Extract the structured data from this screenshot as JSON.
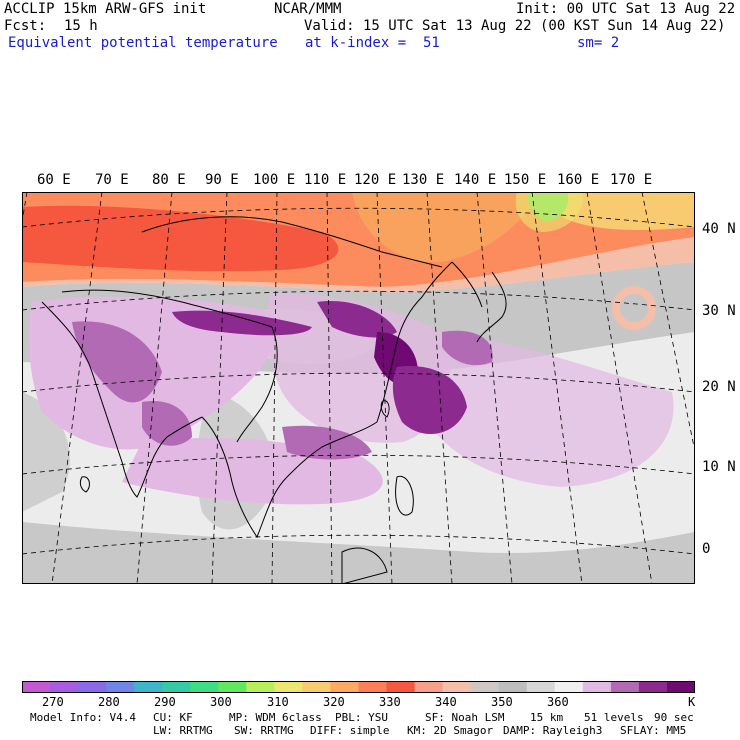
{
  "header": {
    "model": "ACCLIP 15km ARW-GFS init",
    "org": "NCAR/MMM",
    "init": "Init: 00 UTC Sat 13 Aug 22",
    "fcst_label": "Fcst:",
    "fcst_value": "15 h",
    "valid": "Valid: 15 UTC Sat 13 Aug 22 (00 KST Sun 14 Aug 22)",
    "field": "Equivalent potential temperature",
    "level": "at k-index =  51",
    "smooth": "sm= 2"
  },
  "map": {
    "lon_labels": [
      "60 E",
      "70 E",
      "80 E",
      "90 E",
      "100 E",
      "110 E",
      "120 E",
      "130 E",
      "140 E",
      "150 E",
      "160 E",
      "170 E"
    ],
    "lat_labels": [
      "40 N",
      "30 N",
      "20 N",
      "10 N",
      "0"
    ]
  },
  "colorbar": {
    "colors": [
      "#c45ad1",
      "#a85ce0",
      "#8a6ae6",
      "#6f86e8",
      "#3fb6c8",
      "#35c9a6",
      "#3fdc86",
      "#62e85e",
      "#b8ee5a",
      "#ede670",
      "#f8cb70",
      "#fca962",
      "#fc7f58",
      "#f5573f",
      "#f6a08a",
      "#f4bea8",
      "#cfc8c2",
      "#bdbdbd",
      "#d6d6d6",
      "#f0f0f0",
      "#e2b9e2",
      "#b26ab5",
      "#8c2a8f",
      "#6e0a72"
    ],
    "ticks": [
      "270",
      "280",
      "290",
      "300",
      "310",
      "320",
      "330",
      "340",
      "350",
      "360"
    ],
    "unit": "K"
  },
  "footer": {
    "model_info": "Model Info: V4.4",
    "cu": "CU: KF",
    "mp": "MP: WDM 6class",
    "pbl": "PBL: YSU",
    "sf": "SF: Noah LSM",
    "res": "15 km",
    "levels": "51 levels",
    "dt": "90 sec",
    "lw": "LW: RRTMG",
    "sw": "SW: RRTMG",
    "diff": "DIFF: simple",
    "km": "KM: 2D Smagor",
    "damp": "DAMP: Rayleigh3",
    "sflay": "SFLAY: MM5"
  }
}
